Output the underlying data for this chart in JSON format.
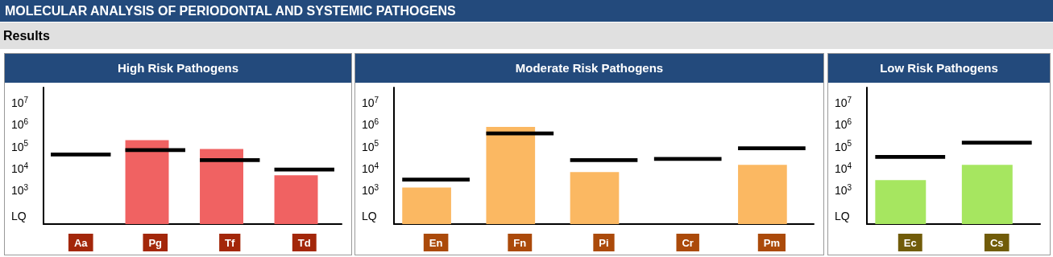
{
  "chart_data": [
    {
      "type": "bar",
      "title": "High Risk Pathogens",
      "annotations": [
        "MOLECULAR ANALYSIS OF PERIODONTAL AND SYSTEMIC PATHOGENS",
        "Results"
      ],
      "categories": [
        "Aa",
        "Pg",
        "Tf",
        "Td"
      ],
      "log": "y",
      "grid": false,
      "ylim": [
        30,
        50000000
      ],
      "yticks": [
        {
          "value": 70,
          "label": "LQ"
        },
        {
          "value": 1000,
          "label": "10$^{3}$"
        },
        {
          "value": 10000,
          "label": "10$^{4}$"
        },
        {
          "value": 100000,
          "label": "10$^{5}$"
        },
        {
          "value": 1000000,
          "label": "10$^{6}$"
        },
        {
          "value": 10000000,
          "label": "10$^{7}$"
        }
      ],
      "series": [
        {
          "color": "#f06262",
          "values": [
            null,
            200000,
            80000,
            5000
          ]
        },
        {
          "color": "#000000",
          "base": [
            36000,
            58000,
            20000,
            7500
          ],
          "values": [
            18000,
            29000,
            10000,
            3700
          ]
        }
      ]
    },
    {
      "type": "bar",
      "title": "Moderate Risk Pathogens",
      "categories": [
        "En",
        "Fn",
        "Pi",
        "Cr",
        "Pm"
      ],
      "log": "y",
      "grid": false,
      "ylim": [
        30,
        50000000
      ],
      "yticks": [
        {
          "value": 70,
          "label": "LQ"
        },
        {
          "value": 1000,
          "label": "10$^{3}$"
        },
        {
          "value": 10000,
          "label": "10$^{4}$"
        },
        {
          "value": 100000,
          "label": "10$^{5}$"
        },
        {
          "value": 1000000,
          "label": "10$^{6}$"
        },
        {
          "value": 10000000,
          "label": "10$^{7}$"
        }
      ],
      "series": [
        {
          "color": "#fbb862",
          "values": [
            1400,
            800000,
            7000,
            null,
            15000
          ]
        },
        {
          "color": "#000000",
          "base": [
            2600,
            330000,
            20000,
            23000,
            70000
          ],
          "values": [
            1300,
            165000,
            10000,
            11000,
            35000
          ]
        }
      ]
    },
    {
      "type": "bar",
      "title": "Low Risk Pathogens",
      "categories": [
        "Ec",
        "Cs"
      ],
      "log": "y",
      "grid": false,
      "ylim": [
        30,
        50000000
      ],
      "yticks": [
        {
          "value": 70,
          "label": "LQ"
        },
        {
          "value": 1000,
          "label": "10$^{3}$"
        },
        {
          "value": 10000,
          "label": "10$^{4}$"
        },
        {
          "value": 100000,
          "label": "10$^{5}$"
        },
        {
          "value": 1000000,
          "label": "10$^{6}$"
        },
        {
          "value": 10000000,
          "label": "10$^{7}$"
        }
      ],
      "series": [
        {
          "color": "#a6e660",
          "values": [
            3000,
            15000
          ]
        },
        {
          "color": "#000000",
          "base": [
            28000,
            125000
          ],
          "values": [
            14000,
            62000
          ]
        }
      ]
    }
  ]
}
